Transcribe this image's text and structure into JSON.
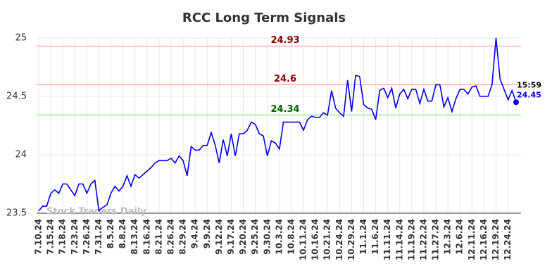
{
  "chart_data": {
    "type": "line",
    "title": "RCC Long Term Signals",
    "watermark": "Stock Traders Daily",
    "time_label": "15:59",
    "color": "#0000ee",
    "ylim": [
      23.5,
      25
    ],
    "yticks": [
      23.5,
      24,
      24.5,
      25
    ],
    "grid": true,
    "hlines": [
      {
        "value": 24.93,
        "line_color": "#ffb3b3",
        "text_color": "#8b0000"
      },
      {
        "value": 24.6,
        "line_color": "#ffb3b3",
        "text_color": "#8b0000"
      },
      {
        "value": 24.34,
        "line_color": "#90ee90",
        "text_color": "#006400"
      }
    ],
    "categories": [
      "7.10.24",
      null,
      null,
      "7.15.24",
      null,
      null,
      "7.18.24",
      null,
      null,
      "7.23.24",
      null,
      null,
      "7.26.24",
      null,
      null,
      "7.31.24",
      null,
      null,
      "8.5.24",
      null,
      null,
      "8.8.24",
      null,
      null,
      "8.13.24",
      null,
      null,
      "8.16.24",
      null,
      null,
      "8.21.24",
      null,
      null,
      "8.26.24",
      null,
      null,
      "8.29.24",
      null,
      null,
      "9.4.24",
      null,
      null,
      "9.9.24",
      null,
      null,
      "9.12.24",
      null,
      null,
      "9.17.24",
      null,
      null,
      "9.20.24",
      null,
      null,
      "9.25.24",
      null,
      null,
      "9.30.24",
      null,
      null,
      "10.3.24",
      null,
      null,
      "10.8.24",
      null,
      null,
      "10.11.24",
      null,
      null,
      "10.16.24",
      null,
      null,
      "10.21.24",
      null,
      null,
      "10.24.24",
      null,
      null,
      "10.29.24",
      null,
      null,
      "11.1.24",
      null,
      null,
      "11.6.24",
      null,
      null,
      "11.11.24",
      null,
      null,
      "11.14.24",
      null,
      null,
      "11.19.24",
      null,
      null,
      "11.22.24",
      null,
      null,
      "11.27.24",
      null,
      null,
      "12.3.24",
      null,
      null,
      "12.6.24",
      null,
      null,
      "12.11.24",
      null,
      null,
      "12.16.24",
      null,
      null,
      "12.19.24",
      null,
      null,
      "12.24.24",
      null,
      null
    ],
    "values": [
      23.52,
      23.56,
      23.56,
      23.67,
      23.7,
      23.67,
      23.75,
      23.75,
      23.7,
      23.65,
      23.75,
      23.75,
      23.67,
      23.75,
      23.78,
      23.52,
      23.55,
      23.57,
      23.67,
      23.73,
      23.69,
      23.73,
      23.82,
      23.73,
      23.83,
      23.8,
      23.83,
      23.86,
      23.89,
      23.93,
      23.95,
      23.95,
      23.95,
      23.97,
      23.93,
      23.99,
      23.95,
      23.82,
      24.07,
      24.04,
      24.04,
      24.08,
      24.08,
      24.19,
      24.08,
      23.93,
      24.13,
      23.99,
      24.18,
      23.99,
      24.18,
      24.18,
      24.21,
      24.28,
      24.26,
      24.18,
      24.16,
      23.99,
      24.12,
      24.1,
      24.05,
      24.28,
      24.28,
      24.28,
      24.28,
      24.28,
      24.21,
      24.3,
      24.33,
      24.32,
      24.32,
      24.36,
      24.34,
      24.55,
      24.4,
      24.36,
      24.33,
      24.64,
      24.37,
      24.68,
      24.67,
      24.43,
      24.4,
      24.39,
      24.3,
      24.55,
      24.57,
      24.49,
      24.57,
      24.4,
      24.52,
      24.56,
      24.48,
      24.56,
      24.56,
      24.44,
      24.56,
      24.46,
      24.46,
      24.6,
      24.6,
      24.41,
      24.49,
      24.37,
      24.48,
      24.56,
      24.56,
      24.52,
      24.58,
      24.59,
      24.5,
      24.5,
      24.5,
      24.6,
      25.0,
      24.65,
      24.56,
      24.47,
      24.55,
      24.45
    ]
  }
}
